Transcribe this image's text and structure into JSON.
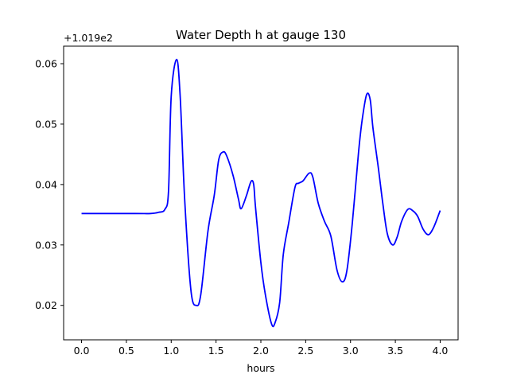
{
  "chart_data": {
    "type": "line",
    "title": "Water Depth h at gauge 130",
    "xlabel": "hours",
    "ylabel": "",
    "y_offset_label": "+1.019e2",
    "xlim": [
      -0.2,
      4.2
    ],
    "ylim": [
      0.0143,
      0.0629
    ],
    "xticks": [
      0.0,
      0.5,
      1.0,
      1.5,
      2.0,
      2.5,
      3.0,
      3.5,
      4.0
    ],
    "xtick_labels": [
      "0.0",
      "0.5",
      "1.0",
      "1.5",
      "2.0",
      "2.5",
      "3.0",
      "3.5",
      "4.0"
    ],
    "yticks": [
      0.02,
      0.03,
      0.04,
      0.05,
      0.06
    ],
    "ytick_labels": [
      "0.02",
      "0.03",
      "0.04",
      "0.05",
      "0.06"
    ],
    "grid": false,
    "series": [
      {
        "name": "h",
        "color": "#0000ff",
        "x": [
          0,
          0.59,
          0.77,
          0.86,
          0.93,
          0.97,
          1.0,
          1.06,
          1.1,
          1.15,
          1.22,
          1.28,
          1.33,
          1.41,
          1.48,
          1.53,
          1.58,
          1.62,
          1.69,
          1.75,
          1.78,
          1.84,
          1.89,
          1.92,
          1.94,
          2.0,
          2.05,
          2.12,
          2.16,
          2.21,
          2.25,
          2.31,
          2.38,
          2.42,
          2.47,
          2.54,
          2.58,
          2.64,
          2.71,
          2.78,
          2.85,
          2.91,
          2.96,
          3.02,
          3.09,
          3.13,
          3.18,
          3.22,
          3.25,
          3.31,
          3.36,
          3.41,
          3.47,
          3.52,
          3.57,
          3.64,
          3.7,
          3.75,
          3.81,
          3.87,
          3.93,
          4.0
        ],
        "y": [
          0.0352,
          0.0352,
          0.0352,
          0.0354,
          0.0359,
          0.0389,
          0.0546,
          0.0607,
          0.0546,
          0.0376,
          0.0225,
          0.02,
          0.0218,
          0.0323,
          0.0382,
          0.0441,
          0.0454,
          0.0447,
          0.0415,
          0.0376,
          0.036,
          0.0382,
          0.0405,
          0.04,
          0.0363,
          0.0271,
          0.0218,
          0.0169,
          0.0172,
          0.0205,
          0.0284,
          0.0336,
          0.0395,
          0.0402,
          0.0406,
          0.0419,
          0.0412,
          0.0369,
          0.0339,
          0.0315,
          0.0258,
          0.0239,
          0.0258,
          0.0336,
          0.0454,
          0.0507,
          0.0549,
          0.054,
          0.0494,
          0.0428,
          0.0369,
          0.0319,
          0.03,
          0.0313,
          0.0339,
          0.0359,
          0.0356,
          0.0347,
          0.0326,
          0.0317,
          0.033,
          0.0357
        ]
      }
    ]
  }
}
